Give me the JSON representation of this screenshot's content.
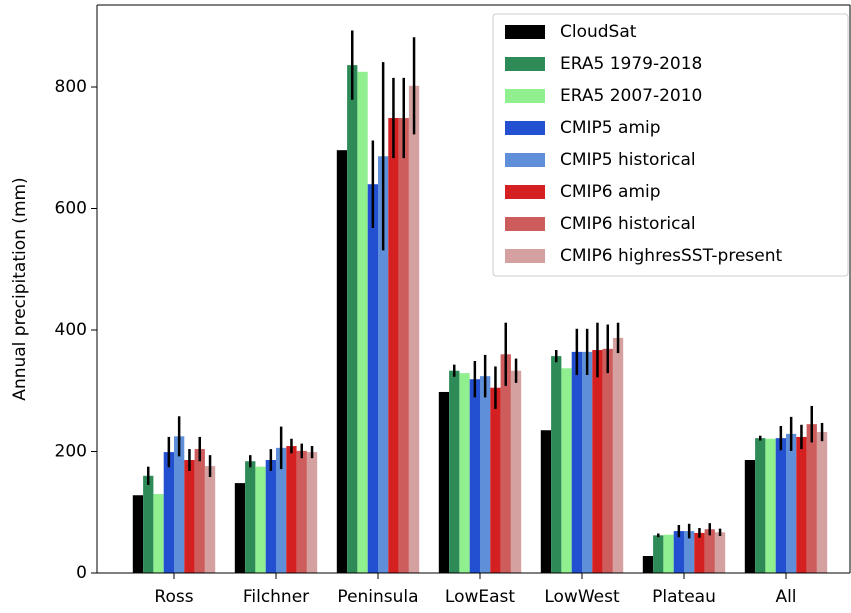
{
  "chart_data": {
    "type": "bar",
    "ylabel": "Annual precipitation (mm)",
    "categories": [
      "Ross",
      "Filchner",
      "Peninsula",
      "LowEast",
      "LowWest",
      "Plateau",
      "All"
    ],
    "series": [
      {
        "name": "CloudSat",
        "color": "#000000",
        "values": [
          128,
          148,
          696,
          298,
          235,
          28,
          186
        ],
        "errors": [
          null,
          null,
          null,
          null,
          null,
          null,
          null
        ]
      },
      {
        "name": "ERA5 1979-2018",
        "color": "#2e8b57",
        "values": [
          160,
          184,
          836,
          333,
          357,
          62,
          222
        ],
        "errors": [
          15,
          10,
          57,
          10,
          10,
          3,
          4
        ]
      },
      {
        "name": "ERA5 2007-2010",
        "color": "#90f090",
        "values": [
          130,
          175,
          825,
          329,
          337,
          63,
          221
        ],
        "errors": [
          null,
          null,
          null,
          null,
          null,
          null,
          null
        ]
      },
      {
        "name": "CMIP5 amip",
        "color": "#2250d0",
        "values": [
          199,
          186,
          640,
          319,
          364,
          69,
          222
        ],
        "errors": [
          25,
          18,
          72,
          30,
          38,
          10,
          20
        ]
      },
      {
        "name": "CMIP5 historical",
        "color": "#5e8fd8",
        "values": [
          225,
          206,
          686,
          324,
          364,
          69,
          229
        ],
        "errors": [
          33,
          35,
          155,
          35,
          38,
          12,
          28
        ]
      },
      {
        "name": "CMIP6 amip",
        "color": "#d42020",
        "values": [
          186,
          209,
          749,
          305,
          367,
          66,
          224
        ],
        "errors": [
          18,
          12,
          66,
          35,
          45,
          8,
          20
        ]
      },
      {
        "name": "CMIP6 historical",
        "color": "#cd5c5c",
        "values": [
          204,
          201,
          749,
          360,
          369,
          72,
          245
        ],
        "errors": [
          20,
          12,
          66,
          52,
          40,
          10,
          30
        ]
      },
      {
        "name": "CMIP6 highresSST-present",
        "color": "#d4a0a0",
        "values": [
          176,
          199,
          802,
          333,
          387,
          67,
          232
        ],
        "errors": [
          18,
          10,
          80,
          20,
          25,
          6,
          15
        ]
      }
    ],
    "ylim": [
      0,
      935
    ],
    "yticks": [
      0,
      200,
      400,
      600,
      800
    ],
    "legend": "upper-right"
  }
}
